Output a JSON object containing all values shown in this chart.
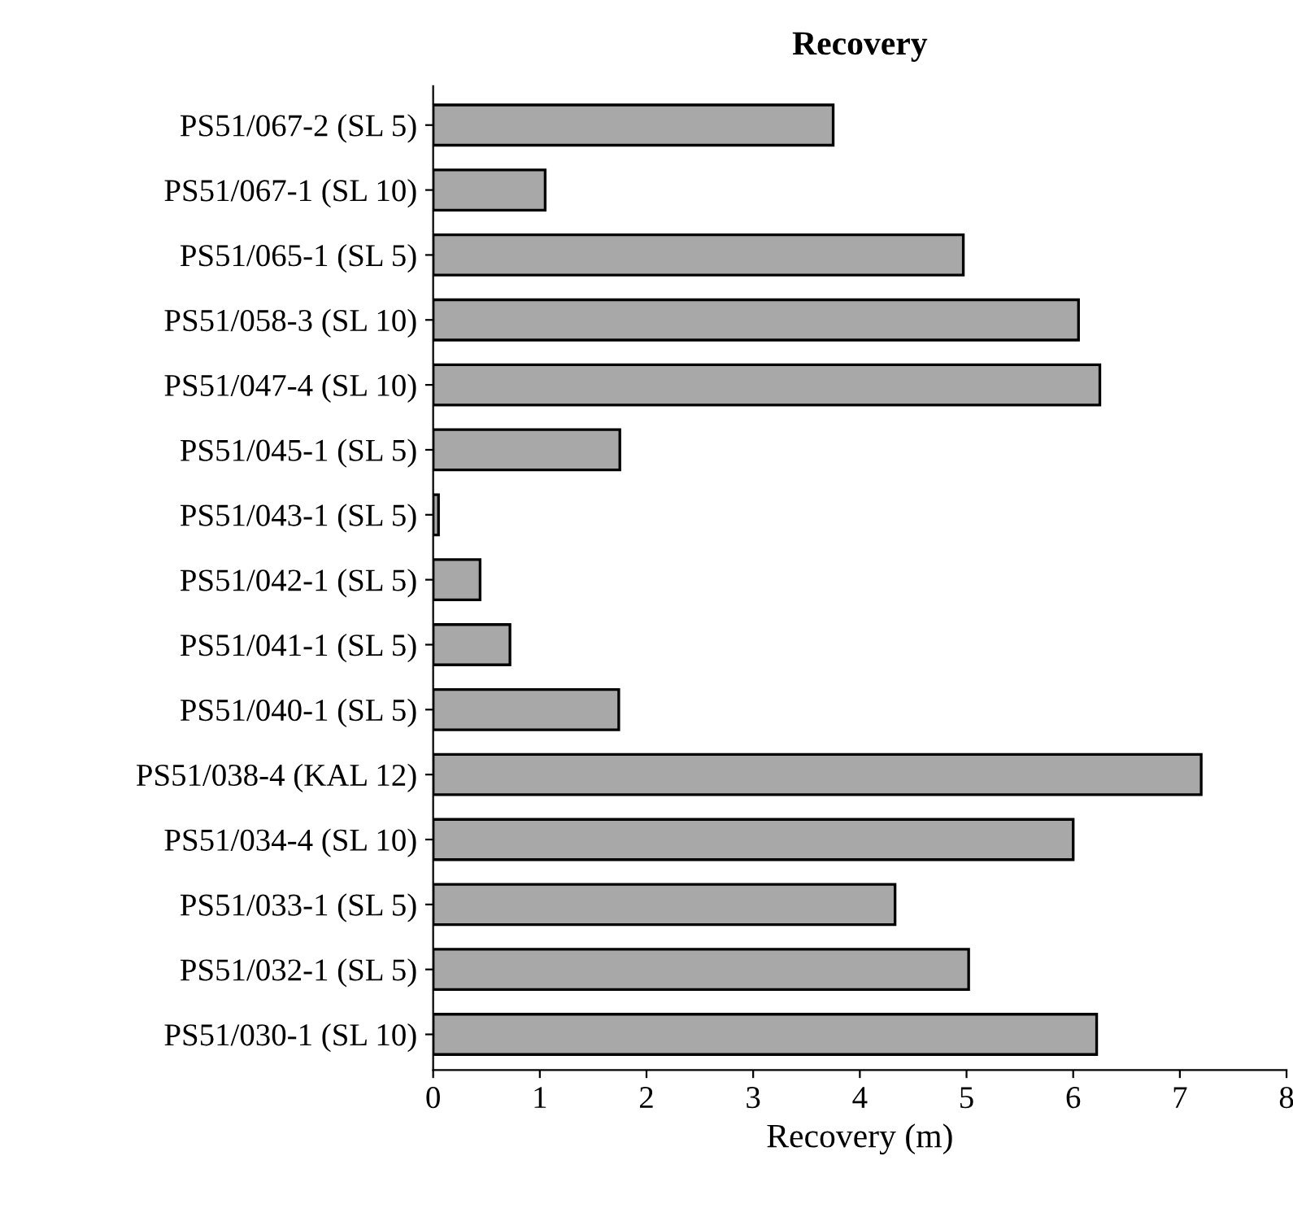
{
  "chart_data": {
    "type": "bar",
    "orientation": "horizontal",
    "title": "Recovery",
    "xlabel": "Recovery (m)",
    "categories": [
      "PS51/067-2 (SL 5)",
      "PS51/067-1 (SL 10)",
      "PS51/065-1 (SL 5)",
      "PS51/058-3 (SL 10)",
      "PS51/047-4 (SL 10)",
      "PS51/045-1 (SL 5)",
      "PS51/043-1 (SL 5)",
      "PS51/042-1 (SL 5)",
      "PS51/041-1 (SL 5)",
      "PS51/040-1 (SL 5)",
      "PS51/038-4 (KAL 12)",
      "PS51/034-4 (SL 10)",
      "PS51/033-1 (SL 5)",
      "PS51/032-1 (SL 5)",
      "PS51/030-1 (SL 10)"
    ],
    "values": [
      3.75,
      1.05,
      4.97,
      6.05,
      6.25,
      1.75,
      0.05,
      0.44,
      0.72,
      1.74,
      7.2,
      6.0,
      4.33,
      5.02,
      6.22
    ],
    "color": "#a8a8a8",
    "xlim": [
      0,
      8
    ],
    "xticks": [
      0,
      1,
      2,
      3,
      4,
      5,
      6,
      7,
      8
    ],
    "grid": false
  }
}
